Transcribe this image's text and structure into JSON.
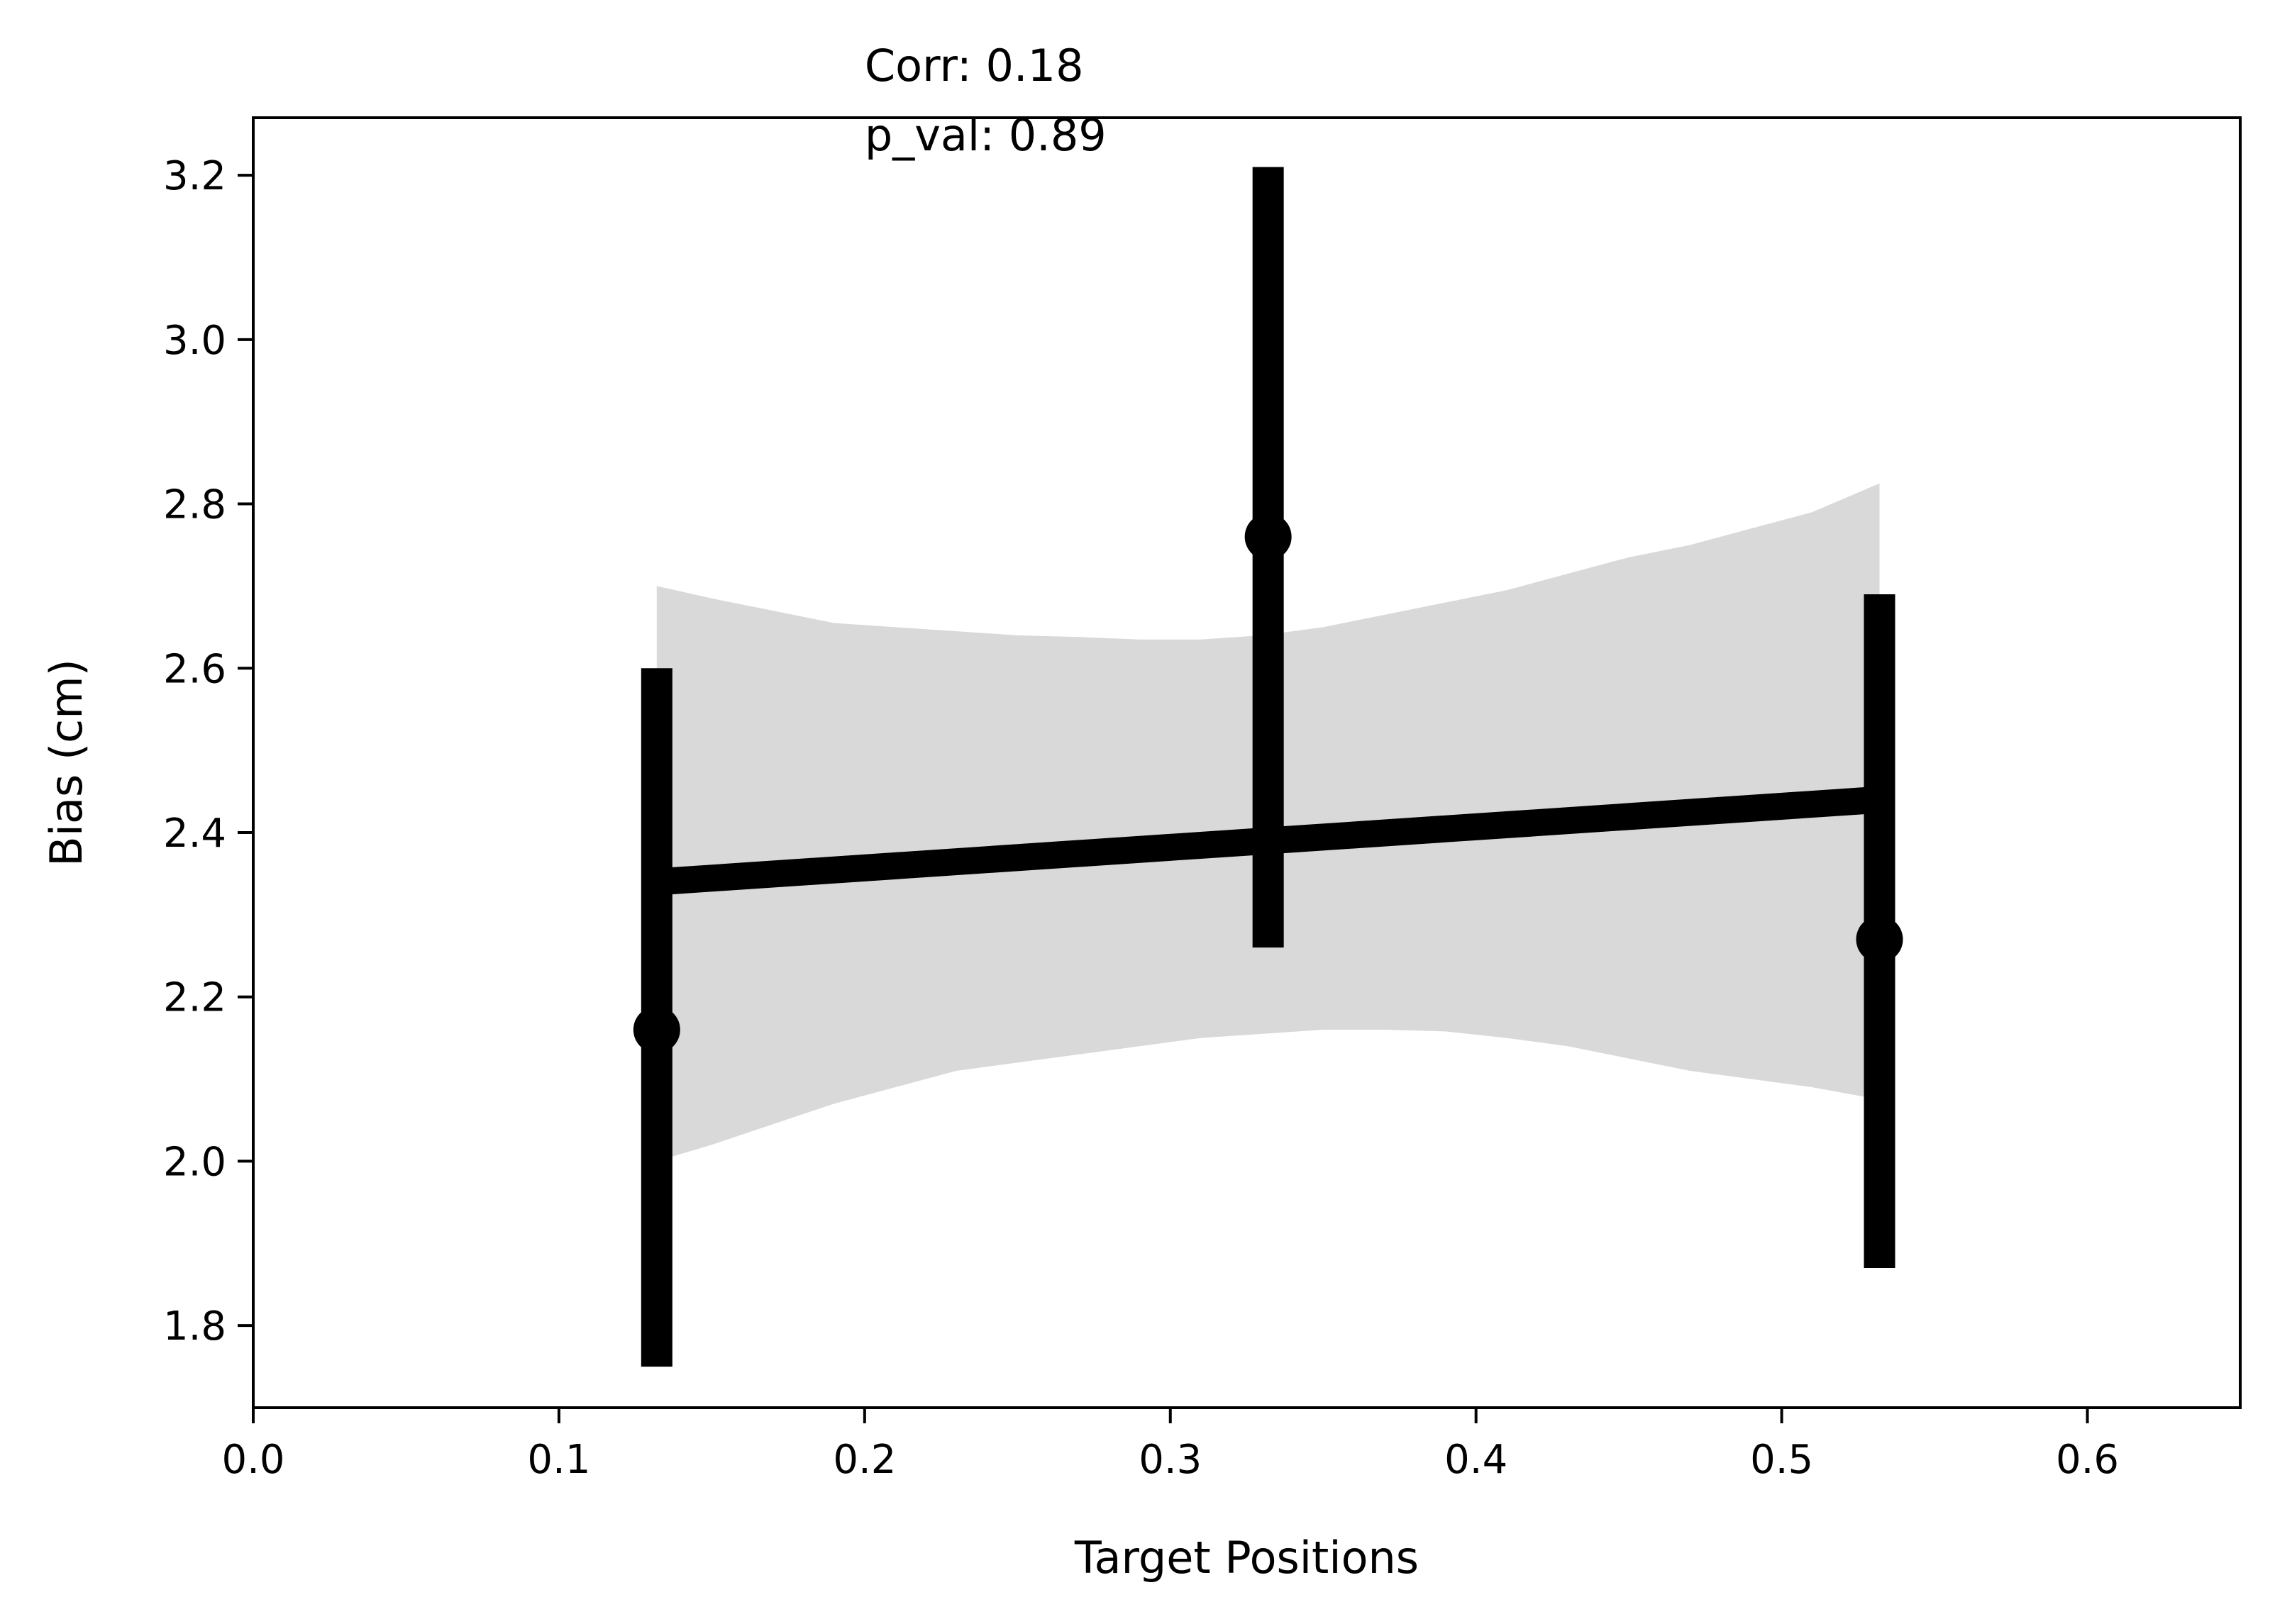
{
  "chart_data": {
    "type": "scatter",
    "title": "",
    "xlabel": "Target Positions",
    "ylabel": "Bias (cm)",
    "xlim": [
      0.0,
      0.65
    ],
    "ylim": [
      1.7,
      3.27
    ],
    "x_ticks": [
      "0.0",
      "0.1",
      "0.2",
      "0.3",
      "0.4",
      "0.5",
      "0.6"
    ],
    "y_ticks": [
      "1.8",
      "2.0",
      "2.2",
      "2.4",
      "2.6",
      "2.8",
      "3.0",
      "3.2"
    ],
    "grid": false,
    "legend": "none",
    "colors": {
      "points": "#000000",
      "regression_line": "#000000",
      "confidence_band": "#d9d9d9"
    },
    "annotation": {
      "lines": [
        "Corr: 0.18",
        "p_val: 0.89"
      ],
      "x": 0.2,
      "y": 3.22
    },
    "points": [
      {
        "x": 0.132,
        "y": 2.16,
        "err_low": 1.75,
        "err_high": 2.6
      },
      {
        "x": 0.332,
        "y": 2.76,
        "err_low": 2.26,
        "err_high": 3.21
      },
      {
        "x": 0.532,
        "y": 2.27,
        "err_low": 1.87,
        "err_high": 2.69
      }
    ],
    "regression": {
      "x": [
        0.132,
        0.532
      ],
      "y": [
        2.34,
        2.44
      ]
    },
    "confidence_band": {
      "x": [
        0.132,
        0.15,
        0.17,
        0.19,
        0.21,
        0.23,
        0.25,
        0.27,
        0.29,
        0.31,
        0.33,
        0.35,
        0.37,
        0.39,
        0.41,
        0.43,
        0.45,
        0.47,
        0.49,
        0.51,
        0.532
      ],
      "upper": [
        2.7,
        2.685,
        2.67,
        2.655,
        2.65,
        2.645,
        2.64,
        2.638,
        2.635,
        2.635,
        2.64,
        2.65,
        2.665,
        2.68,
        2.695,
        2.715,
        2.735,
        2.75,
        2.77,
        2.79,
        2.825
      ],
      "lower": [
        2.0,
        2.02,
        2.045,
        2.07,
        2.09,
        2.11,
        2.12,
        2.13,
        2.14,
        2.15,
        2.155,
        2.16,
        2.16,
        2.158,
        2.15,
        2.14,
        2.125,
        2.11,
        2.1,
        2.09,
        2.075
      ]
    }
  }
}
